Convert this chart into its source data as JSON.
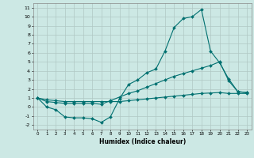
{
  "xlabel": "Humidex (Indice chaleur)",
  "background_color": "#cce8e4",
  "grid_color": "#b0c8c4",
  "line_color": "#007070",
  "xlim": [
    -0.5,
    23.5
  ],
  "ylim": [
    -2.5,
    11.5
  ],
  "xticks": [
    0,
    1,
    2,
    3,
    4,
    5,
    6,
    7,
    8,
    9,
    10,
    11,
    12,
    13,
    14,
    15,
    16,
    17,
    18,
    19,
    20,
    21,
    22,
    23
  ],
  "yticks": [
    -2,
    -1,
    0,
    1,
    2,
    3,
    4,
    5,
    6,
    7,
    8,
    9,
    10,
    11
  ],
  "line1_x": [
    0,
    1,
    2,
    3,
    4,
    5,
    6,
    7,
    8,
    9,
    10,
    11,
    12,
    13,
    14,
    15,
    16,
    17,
    18,
    19,
    20,
    21,
    22,
    23
  ],
  "line1_y": [
    1.0,
    0.0,
    -0.3,
    -1.1,
    -1.2,
    -1.2,
    -1.3,
    -1.7,
    -1.1,
    0.9,
    2.5,
    3.0,
    3.8,
    4.2,
    6.2,
    8.8,
    9.8,
    10.0,
    10.8,
    6.2,
    4.9,
    3.1,
    1.7,
    1.6
  ],
  "line2_x": [
    0,
    1,
    2,
    3,
    4,
    5,
    6,
    7,
    8,
    9,
    10,
    11,
    12,
    13,
    14,
    15,
    16,
    17,
    18,
    19,
    20,
    21,
    22,
    23
  ],
  "line2_y": [
    1.0,
    0.6,
    0.5,
    0.4,
    0.4,
    0.4,
    0.4,
    0.3,
    0.7,
    1.1,
    1.5,
    1.8,
    2.2,
    2.6,
    3.0,
    3.4,
    3.7,
    4.0,
    4.3,
    4.6,
    5.0,
    2.9,
    1.7,
    1.6
  ],
  "line3_x": [
    0,
    1,
    2,
    3,
    4,
    5,
    6,
    7,
    8,
    9,
    10,
    11,
    12,
    13,
    14,
    15,
    16,
    17,
    18,
    19,
    20,
    21,
    22,
    23
  ],
  "line3_y": [
    1.0,
    0.8,
    0.7,
    0.6,
    0.6,
    0.6,
    0.6,
    0.6,
    0.6,
    0.6,
    0.7,
    0.8,
    0.9,
    1.0,
    1.1,
    1.2,
    1.3,
    1.4,
    1.5,
    1.55,
    1.6,
    1.5,
    1.5,
    1.5
  ]
}
